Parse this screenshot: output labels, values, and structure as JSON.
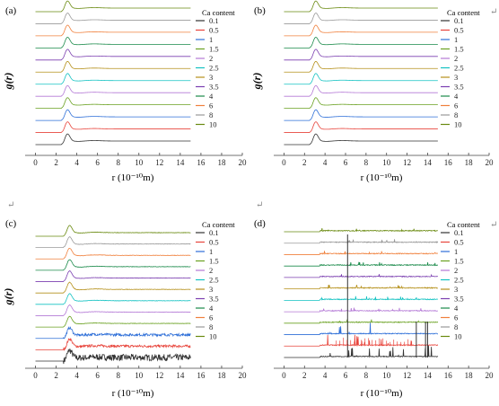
{
  "figure": {
    "return_mark": "↵"
  },
  "series_colors": [
    "#333333",
    "#e8453c",
    "#2e6fd8",
    "#6aa121",
    "#b479d6",
    "#13c2c2",
    "#b5901a",
    "#7b3fb0",
    "#1a8a4a",
    "#f0803c",
    "#9a9a9a",
    "#6a8a10"
  ],
  "chart_data": [
    {
      "panel": "(a)",
      "type": "line",
      "ylabel": "g(r)",
      "xlabel": "r (10⁻¹⁰m)",
      "xlim": [
        -1,
        20
      ],
      "xticks": [
        0,
        2,
        4,
        6,
        8,
        10,
        12,
        14,
        16,
        18,
        20
      ],
      "legend_title": "Ca content",
      "legend_position": "right",
      "grid": false,
      "peak_r": 3.1,
      "x_range": [
        0,
        15
      ],
      "series": [
        {
          "name": "0.1"
        },
        {
          "name": "0.5"
        },
        {
          "name": "1"
        },
        {
          "name": "1.5"
        },
        {
          "name": "2"
        },
        {
          "name": "2.5"
        },
        {
          "name": "3"
        },
        {
          "name": "3.5"
        },
        {
          "name": "4"
        },
        {
          "name": "6"
        },
        {
          "name": "8"
        },
        {
          "name": "10"
        }
      ]
    },
    {
      "panel": "(b)",
      "type": "line",
      "ylabel": "g(r)",
      "xlabel": "r (10⁻¹⁰m)",
      "xlim": [
        -1,
        20
      ],
      "xticks": [
        0,
        2,
        4,
        6,
        8,
        10,
        12,
        14,
        16,
        18,
        20
      ],
      "legend_title": "Ca content",
      "legend_position": "right",
      "grid": false,
      "peak_r": 3.1,
      "x_range": [
        0,
        15
      ],
      "series": [
        {
          "name": "0.1"
        },
        {
          "name": "0.5"
        },
        {
          "name": "1"
        },
        {
          "name": "1.5"
        },
        {
          "name": "2"
        },
        {
          "name": "2.5"
        },
        {
          "name": "3"
        },
        {
          "name": "3.5"
        },
        {
          "name": "4"
        },
        {
          "name": "6"
        },
        {
          "name": "8"
        },
        {
          "name": "10"
        }
      ]
    },
    {
      "panel": "(c)",
      "type": "line",
      "ylabel": "g(r)",
      "xlabel": "r (10⁻¹⁰m)",
      "xlim": [
        -1,
        20
      ],
      "xticks": [
        0,
        2,
        4,
        6,
        8,
        10,
        12,
        14,
        16,
        18,
        20
      ],
      "legend_title": "Ca content",
      "legend_position": "right",
      "grid": false,
      "peak_r": 3.3,
      "x_range": [
        0,
        15
      ],
      "series": [
        {
          "name": "0.1"
        },
        {
          "name": "0.5"
        },
        {
          "name": "1"
        },
        {
          "name": "1.5"
        },
        {
          "name": "2"
        },
        {
          "name": "2.5"
        },
        {
          "name": "3"
        },
        {
          "name": "3.5"
        },
        {
          "name": "4"
        },
        {
          "name": "6"
        },
        {
          "name": "8"
        },
        {
          "name": "10"
        }
      ]
    },
    {
      "panel": "(d)",
      "type": "line",
      "ylabel": "",
      "xlabel": "r (10⁻¹⁰m)",
      "xlim": [
        -1,
        20
      ],
      "xticks": [
        0,
        2,
        4,
        6,
        8,
        10,
        12,
        14,
        16,
        18,
        20
      ],
      "legend_title": "Ca content",
      "legend_position": "right",
      "grid": false,
      "peak_r": 3.8,
      "x_range": [
        0,
        15
      ],
      "spikes": [
        {
          "series": 0,
          "r": 6.2,
          "height": "full"
        },
        {
          "series": 0,
          "r": 12.9,
          "height": "large"
        },
        {
          "series": 0,
          "r": 13.8,
          "height": "large"
        },
        {
          "series": 0,
          "r": 14.0,
          "height": "large"
        }
      ],
      "series": [
        {
          "name": "0.1"
        },
        {
          "name": "0.5"
        },
        {
          "name": "1"
        },
        {
          "name": "1.5"
        },
        {
          "name": "2"
        },
        {
          "name": "2.5"
        },
        {
          "name": "3"
        },
        {
          "name": "3.5"
        },
        {
          "name": "4"
        },
        {
          "name": "6"
        },
        {
          "name": "8"
        },
        {
          "name": "10"
        }
      ]
    }
  ]
}
